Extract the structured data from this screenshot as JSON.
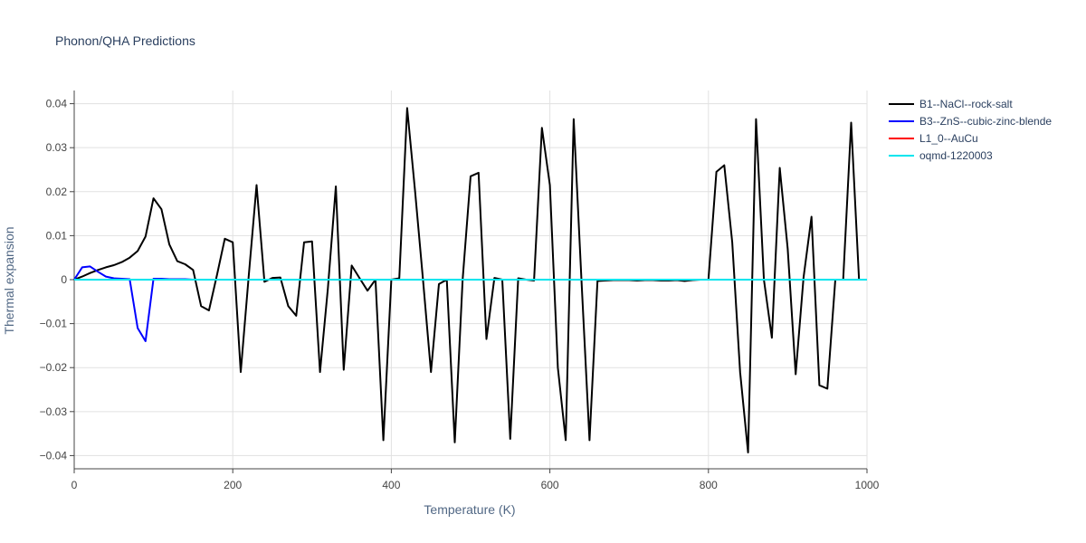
{
  "chart_data": {
    "type": "line",
    "title": "Phonon/QHA Predictions",
    "xlabel": "Temperature (K)",
    "ylabel": "Thermal expansion",
    "xlim": [
      0,
      1000
    ],
    "ylim": [
      -0.043,
      0.043
    ],
    "xticks": [
      0,
      200,
      400,
      600,
      800,
      1000
    ],
    "yticks": [
      -0.04,
      -0.03,
      -0.02,
      -0.01,
      0,
      0.01,
      0.02,
      0.03,
      0.04
    ],
    "ytick_labels": [
      "−0.04",
      "−0.03",
      "−0.02",
      "−0.01",
      "0",
      "0.01",
      "0.02",
      "0.03",
      "0.04"
    ],
    "grid": true,
    "legend_position": "top-right",
    "series": [
      {
        "name": "B1--NaCl--rock-salt",
        "color": "#000000",
        "x": [
          0,
          10,
          20,
          30,
          40,
          50,
          60,
          70,
          80,
          90,
          100,
          110,
          120,
          130,
          140,
          150,
          160,
          170,
          180,
          190,
          200,
          210,
          220,
          230,
          240,
          250,
          260,
          270,
          280,
          290,
          300,
          310,
          320,
          330,
          340,
          350,
          360,
          370,
          380,
          390,
          400,
          410,
          420,
          430,
          440,
          450,
          460,
          470,
          480,
          490,
          500,
          510,
          520,
          530,
          540,
          550,
          560,
          570,
          580,
          590,
          600,
          610,
          620,
          630,
          640,
          650,
          660,
          670,
          680,
          690,
          700,
          710,
          720,
          730,
          740,
          750,
          760,
          770,
          780,
          790,
          800,
          810,
          820,
          830,
          840,
          850,
          860,
          870,
          880,
          890,
          900,
          910,
          920,
          930,
          940,
          950,
          960,
          970,
          980,
          990
        ],
        "y": [
          0,
          0.0007,
          0.0015,
          0.0022,
          0.0028,
          0.0033,
          0.004,
          0.005,
          0.0065,
          0.0098,
          0.0185,
          0.016,
          0.008,
          0.0042,
          0.0035,
          0.0022,
          -0.006,
          -0.007,
          0.001,
          0.0093,
          0.0085,
          -0.021,
          0.0005,
          0.0215,
          -0.0005,
          0.0004,
          0.0005,
          -0.006,
          -0.0082,
          0.0085,
          0.0087,
          -0.021,
          -0.002,
          0.0212,
          -0.0205,
          0.0032,
          0.0003,
          -0.0025,
          0,
          -0.0365,
          0,
          0.0003,
          0.039,
          0.02,
          0,
          -0.021,
          -0.001,
          0,
          -0.037,
          0,
          0.0235,
          0.0243,
          -0.0135,
          0.0004,
          0,
          -0.0362,
          0.0003,
          0,
          -0.0002,
          0.0345,
          0.0215,
          -0.02,
          -0.0365,
          0.0365,
          -0.0005,
          -0.0365,
          -0.0003,
          -0.0002,
          -0.0001,
          -0.0001,
          -0.0001,
          -0.0002,
          -0.0001,
          -0.0001,
          -0.0002,
          -0.0002,
          -0.0001,
          -0.0003,
          -0.0001,
          0,
          0,
          0.0245,
          0.026,
          0.0085,
          -0.021,
          -0.0393,
          0.0365,
          0,
          -0.0132,
          0.0254,
          0.007,
          -0.0215,
          0.0005,
          0.0143,
          -0.024,
          -0.0248,
          0,
          0,
          0.0357,
          0
        ]
      },
      {
        "name": "B3--ZnS--cubic-zinc-blende",
        "color": "#0000ff",
        "x": [
          0,
          10,
          20,
          30,
          40,
          50,
          60,
          70,
          80,
          90,
          100,
          110,
          120,
          130,
          140,
          150
        ],
        "y": [
          0,
          0.0028,
          0.003,
          0.0018,
          0.0007,
          0.0003,
          0.0002,
          0.0001,
          -0.011,
          -0.014,
          0.0002,
          0.0002,
          0.0001,
          0.0001,
          0.0001,
          0
        ]
      },
      {
        "name": "L1_0--AuCu",
        "color": "#ff0000",
        "x": [
          0,
          1000
        ],
        "y": [
          0,
          0
        ]
      },
      {
        "name": "oqmd-1220003",
        "color": "#00e5ee",
        "x": [
          0,
          1000
        ],
        "y": [
          0,
          0
        ]
      }
    ]
  }
}
